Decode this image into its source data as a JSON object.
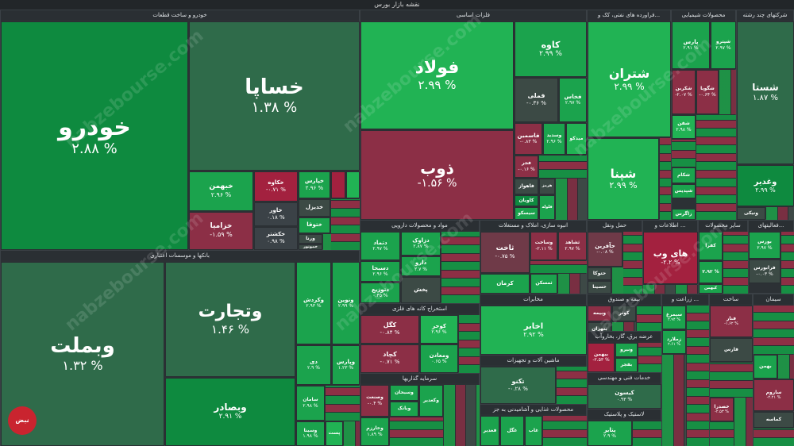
{
  "title": "نقشه بازار بورس",
  "watermark": "nabzebourse.com",
  "logo_text": "نبض بورس",
  "sectors": {
    "auto": "خودرو و ساخت قطعات",
    "metals": "فلزات اساسی",
    "refinery": "فراورده های نفتی، کک و...",
    "chemical": "محصولات شیمیایی",
    "holding": "شرکتهای چند رشته",
    "banks": "بانکها و موسسات اعتباری",
    "pharma": "مواد و محصولات دارویی",
    "realestate": "انبوه سازی، املاک و مستغلات",
    "transport": "حمل ونقل",
    "it": "اطلاعات و ...",
    "other_mining": "سایر محصولات",
    "support": "فعالیتهای...",
    "mining": "استخراج کانه های فلزی",
    "telecom": "مخابرات",
    "insurance": "بیمه و صندوق",
    "agri": "زراعت و ...",
    "cement": "سیمان",
    "ceramic": "ساخت",
    "machinery": "ماشین آلات و تجهیزات",
    "metal_products": "سرمایه گذاریها",
    "food": "محصولات غذایی و آشامیدنی به جز",
    "utilities": "عرضه برق، گاز، بخاروآب",
    "engineering": "خدمات فنی و مهندسی",
    "rubber": "لاستیک و پلاستیک"
  },
  "tiles": {
    "khodro": {
      "name": "خودرو",
      "change": "۲.۸۸ %"
    },
    "khsapa": {
      "name": "خساپا",
      "change": "۱.۳۸ %"
    },
    "khbahman": {
      "name": "خبهمن",
      "change": "۲.۹۶ %"
    },
    "khzamia": {
      "name": "خزامیا",
      "change": "-۱.۵۹ %"
    },
    "khkave": {
      "name": "خکاوه",
      "change": "-۰.۷۱ %"
    },
    "khavar": {
      "name": "خاور",
      "change": "۰.۱۸ %"
    },
    "kheshtar": {
      "name": "خکشتر",
      "change": "۰.۹۸ %"
    },
    "khpars": {
      "name": "خپارس",
      "change": "۲.۹۶ %"
    },
    "khdizel": {
      "name": "خدیزل"
    },
    "khtoka": {
      "name": "ختوقا"
    },
    "ventra": {
      "name": "ورنا"
    },
    "khmootor": {
      "name": "خموتور"
    },
    "folad": {
      "name": "فولاد",
      "change": "۲.۹۹ %"
    },
    "kave": {
      "name": "کاوه",
      "change": "۲.۹۹ %"
    },
    "fameli": {
      "name": "فملی",
      "change": "-۰.۳۶ %"
    },
    "fasa": {
      "name": "فخاس",
      "change": "۲.۹۷ %"
    },
    "zob": {
      "name": "ذوب",
      "change": "-۱.۵۶ %"
    },
    "fasmin": {
      "name": "فاسمین",
      "change": "-۰.۸۳ %"
    },
    "vsadid": {
      "name": "وسدید",
      "change": "۲.۹۶ %"
    },
    "midko": {
      "name": "میدکو"
    },
    "fajr": {
      "name": "فجر",
      "change": "-۰.۱۶ %"
    },
    "fakhoz": {
      "name": "فاهواز"
    },
    "kavian": {
      "name": "کاویان"
    },
    "hormoz": {
      "name": "هرمز"
    },
    "faravar": {
      "name": "فلوله"
    },
    "sisko": {
      "name": "سیسکو"
    },
    "shetran": {
      "name": "شتران",
      "change": "۲.۹۹ %"
    },
    "shina": {
      "name": "شپنا",
      "change": "۲.۹۹ %"
    },
    "shbandar": {
      "name": "شبندر"
    },
    "shpna": {
      "name": "شیراز"
    },
    "pars": {
      "name": "پارس",
      "change": "۲.۹۱ %"
    },
    "shiraz": {
      "name": "شپترو",
      "change": "۲.۹۷ %"
    },
    "shkgosh": {
      "name": "شکربن",
      "change": "-۲.۰۷ %"
    },
    "shsepa": {
      "name": "شگویا",
      "change": "-۰.۶۴ %"
    },
    "shgol": {
      "name": "شفن",
      "change": "۲.۹۸ %"
    },
    "shekam": {
      "name": "شکام"
    },
    "shapdis": {
      "name": "شپدیس"
    },
    "zagros": {
      "name": "زاگرس"
    },
    "shasta": {
      "name": "شستا",
      "change": "۱.۸۷ %"
    },
    "vghadir": {
      "name": "وغدیر",
      "change": "۲.۹۹ %"
    },
    "vnik": {
      "name": "ونیکی"
    },
    "vbmellat": {
      "name": "وبملت",
      "change": "۱.۳۲ %"
    },
    "vtejarat": {
      "name": "وتجارت",
      "change": "۱.۴۶ %"
    },
    "vbsader": {
      "name": "وبصادر",
      "change": "۲.۹۱ %"
    },
    "vkardesh": {
      "name": "وکردش",
      "change": "۲.۹۳ %"
    },
    "vnovin": {
      "name": "ونوین",
      "change": "۲.۹۹ %"
    },
    "vday": {
      "name": "دی",
      "change": "۲.۹ %"
    },
    "vpars": {
      "name": "وپارس",
      "change": "۱.۲۳ %"
    },
    "samaan": {
      "name": "سامان",
      "change": "۲.۹۸ %"
    },
    "vsina": {
      "name": "وسینا",
      "change": "۱.۹۸ %"
    },
    "postbank": {
      "name": "پست"
    },
    "dalima": {
      "name": "دلیما"
    },
    "dana": {
      "name": "دتماد",
      "change": "۲.۹۷ %"
    },
    "dzarav": {
      "name": "دزاوک",
      "change": "۲.۸۷ %"
    },
    "dsobha": {
      "name": "دسبحا",
      "change": "۲.۹۶ %"
    },
    "dara": {
      "name": "دارو",
      "change": "۲.۷ %"
    },
    "dtozi": {
      "name": "دتوزیع",
      "change": "۰.۴۵ %"
    },
    "pakhsh": {
      "name": "پخش"
    },
    "sakhab": {
      "name": "ثاخت",
      "change": "-۰.۷۵ %"
    },
    "sehd": {
      "name": "ثشاهد",
      "change": "۲.۹۷ %"
    },
    "samaha": {
      "name": "وساخت",
      "change": "-۲.۱۱ %"
    },
    "kerman": {
      "name": "کرمان"
    },
    "tamaskan": {
      "name": "ثمسکن"
    },
    "hafarin": {
      "name": "حآفرین",
      "change": "-۰.۰۸ %"
    },
    "hatoka": {
      "name": "حتوکا"
    },
    "hasina": {
      "name": "حسینا"
    },
    "haweb": {
      "name": "های وب",
      "change": "-۲.۲ %"
    },
    "kfara": {
      "name": "کفرا",
      "change": "۲.۹۲ %"
    },
    "kkhak": {
      "name": "کخاک"
    },
    "kebahman": {
      "name": "کبهمن"
    },
    "boors": {
      "name": "بورس",
      "change": "۲.۹۷ %"
    },
    "faraboors": {
      "name": "فرابورس",
      "change": "-۰.۰۳ %"
    },
    "gol": {
      "name": "کگل",
      "change": "-۰.۸۴ %"
    },
    "kchad": {
      "name": "کچاد",
      "change": "-۰.۷۱ %"
    },
    "vkhark": {
      "name": "کوحر",
      "change": "۲.۹۶ %"
    },
    "kmaaden": {
      "name": "ومعادن",
      "change": "۰.۶۵ %"
    },
    "akhaber": {
      "name": "اخابر",
      "change": "۲.۹۲ %"
    },
    "tekno": {
      "name": "تکنو",
      "change": "-۰.۲۸ %"
    },
    "vbimeh": {
      "name": "وبیمه"
    },
    "kowsar": {
      "name": "کوثر"
    },
    "vtejarat2": {
      "name": "بتهران"
    },
    "bbahman": {
      "name": "ببهمن",
      "change": "-۲.۵۳ %"
    },
    "bfajr": {
      "name": "بفجر"
    },
    "vnikh": {
      "name": "ونیرو"
    },
    "kisoon": {
      "name": "کیسون",
      "change": "۰.۹۳ %"
    },
    "ptayr": {
      "name": "پتایر",
      "change": "۲.۹ %"
    },
    "zmagan": {
      "name": "سیمرغ",
      "change": "۲.۹۴ %"
    },
    "zmalard": {
      "name": "زملارد",
      "change": "۲.۶۱ %"
    },
    "fanar": {
      "name": "فنار",
      "change": "-۱.۶۲ %"
    },
    "fapars": {
      "name": "فارس"
    },
    "sehgmat": {
      "name": "ساروم",
      "change": "-۲.۲۱ %"
    },
    "dbahman": {
      "name": "بهمن"
    },
    "khzar": {
      "name": "خصدرا",
      "change": "-۲.۵۳ %"
    },
    "tmas": {
      "name": "کماسه"
    },
    "vsakht": {
      "name": "وصنعت",
      "change": "-۰.۴ %"
    },
    "vsmahan": {
      "name": "وسبحان"
    },
    "vbank": {
      "name": "وبانک"
    },
    "vkharazm": {
      "name": "وخارزم",
      "change": "۱.۸۹ %"
    },
    "vsakhsh": {
      "name": "وکغدیر"
    },
    "ghsirin": {
      "name": "غاب"
    },
    "ghgol": {
      "name": "غگل"
    },
    "khanghagh": {
      "name": "فغدیر"
    }
  }
}
